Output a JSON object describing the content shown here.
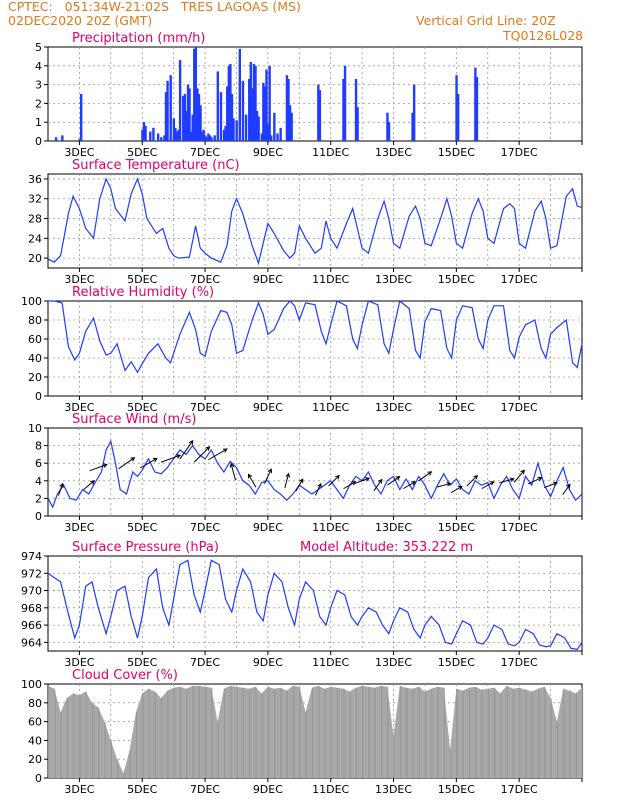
{
  "header": {
    "line1": "CPTEC:   051:34W-21:02S   TRES LAGOAS (MS)",
    "line2": "02DEC2020 20Z (GMT)",
    "grid_note": "Vertical Grid Line: 20Z",
    "code": "TQ0126L028"
  },
  "colors": {
    "header": "#e07a1a",
    "title": "#e0006e",
    "series": "#1f3cff",
    "cloud": "#a8a8a8",
    "grid": "#9a9a9a"
  },
  "x_axis": {
    "start_label": "02DEC2020 20Z",
    "ticks": [
      "3DEC",
      "5DEC",
      "7DEC",
      "9DEC",
      "11DEC",
      "13DEC",
      "15DEC",
      "17DEC"
    ]
  },
  "chart_data": [
    {
      "id": "precip",
      "type": "bar",
      "title": "Precipitation (mm/h)",
      "ylim": [
        0,
        5
      ],
      "yticks": [
        0,
        1,
        2,
        3,
        4,
        5
      ],
      "x_unit": "days since 02DEC2020 20Z",
      "x": [
        0.25,
        0.45,
        1.0,
        1.05,
        3.0,
        3.05,
        3.1,
        3.25,
        3.35,
        3.5,
        3.6,
        3.7,
        3.75,
        3.8,
        3.9,
        4.0,
        4.05,
        4.1,
        4.15,
        4.2,
        4.3,
        4.35,
        4.4,
        4.45,
        4.5,
        4.55,
        4.6,
        4.65,
        4.7,
        4.75,
        4.8,
        4.85,
        4.9,
        4.95,
        5.0,
        5.05,
        5.1,
        5.15,
        5.2,
        5.3,
        5.4,
        5.5,
        5.6,
        5.65,
        5.7,
        5.75,
        5.8,
        5.85,
        5.9,
        6.0,
        6.1,
        6.2,
        6.3,
        6.4,
        6.45,
        6.5,
        6.55,
        6.6,
        6.65,
        6.7,
        6.8,
        6.85,
        6.9,
        6.95,
        7.0,
        7.05,
        7.1,
        7.2,
        7.3,
        7.4,
        7.6,
        7.65,
        7.7,
        7.75,
        8.6,
        8.65,
        9.4,
        9.45,
        9.8,
        9.85,
        10.8,
        10.85,
        11.6,
        11.65,
        13.0,
        13.05,
        13.6,
        13.65
      ],
      "values": [
        0.2,
        0.3,
        0.1,
        2.5,
        0.6,
        1.0,
        0.8,
        0.5,
        0.7,
        0.4,
        0.2,
        0.3,
        2.6,
        3.2,
        3.5,
        1.2,
        0.7,
        0.5,
        0.6,
        4.3,
        2.4,
        2.5,
        1.6,
        3.0,
        2.8,
        0.5,
        1.4,
        4.9,
        5.0,
        2.8,
        2.5,
        1.9,
        0.5,
        0.6,
        0.3,
        0.2,
        0.4,
        0.3,
        0.2,
        0.3,
        3.7,
        2.6,
        0.6,
        0.8,
        2.9,
        4.0,
        4.1,
        2.5,
        1.2,
        1.1,
        4.9,
        3.2,
        1.4,
        3.3,
        4.2,
        2.8,
        4.1,
        4.0,
        1.6,
        1.3,
        0.4,
        3.1,
        2.9,
        3.8,
        0.9,
        4.0,
        0.3,
        1.5,
        0.4,
        0.7,
        3.5,
        3.3,
        1.9,
        1.5,
        3.0,
        2.7,
        3.3,
        4.0,
        3.3,
        1.8,
        1.5,
        1.0,
        1.5,
        3.0,
        3.5,
        2.5,
        3.9,
        3.4
      ]
    },
    {
      "id": "temp",
      "type": "line",
      "title": "Surface Temperature (nC)",
      "ylim": [
        18,
        37
      ],
      "yticks": [
        20,
        24,
        28,
        32,
        36
      ],
      "x_unit": "days since 02DEC2020 20Z",
      "x": [
        0.0,
        0.2,
        0.4,
        0.65,
        0.8,
        1.0,
        1.2,
        1.45,
        1.65,
        1.85,
        2.0,
        2.15,
        2.45,
        2.65,
        2.85,
        3.0,
        3.15,
        3.45,
        3.65,
        3.85,
        4.0,
        4.15,
        4.5,
        4.7,
        4.85,
        5.0,
        5.2,
        5.5,
        5.7,
        5.85,
        6.0,
        6.2,
        6.5,
        6.7,
        6.85,
        7.0,
        7.2,
        7.5,
        7.7,
        7.85,
        8.0,
        8.2,
        8.5,
        8.7,
        8.85,
        9.0,
        9.2,
        9.5,
        9.7,
        9.85,
        10.0,
        10.2,
        10.5,
        10.7,
        10.85,
        11.0,
        11.2,
        11.5,
        11.7,
        11.85,
        12.0,
        12.2,
        12.5,
        12.7,
        12.85,
        13.0,
        13.2,
        13.5,
        13.7,
        13.85,
        14.0,
        14.2,
        14.5,
        14.7,
        14.85,
        15.0,
        15.2,
        15.5,
        15.7,
        15.85,
        16.0,
        16.2,
        16.5,
        16.7,
        16.85,
        17.0
      ],
      "values": [
        19.8,
        19.2,
        20.5,
        29.0,
        32.5,
        30.0,
        26.0,
        24.0,
        32.0,
        36.0,
        34.0,
        30.0,
        27.5,
        33.0,
        36.0,
        33.0,
        28.0,
        25.0,
        26.0,
        22.0,
        20.5,
        20.0,
        20.2,
        26.5,
        22.0,
        21.0,
        20.0,
        19.2,
        22.5,
        29.5,
        32.0,
        29.0,
        22.5,
        19.0,
        23.0,
        27.0,
        25.0,
        21.5,
        20.0,
        21.0,
        26.5,
        24.0,
        21.0,
        22.0,
        27.5,
        24.0,
        22.0,
        27.0,
        30.0,
        26.0,
        22.0,
        21.0,
        28.0,
        31.5,
        28.0,
        23.0,
        22.0,
        28.5,
        30.5,
        28.0,
        23.0,
        22.5,
        28.0,
        32.0,
        28.5,
        23.0,
        22.0,
        29.0,
        32.0,
        29.5,
        24.0,
        23.0,
        30.0,
        31.0,
        30.0,
        23.0,
        22.0,
        29.5,
        31.5,
        28.0,
        22.0,
        22.5,
        32.5,
        34.0,
        30.5,
        30.2
      ]
    },
    {
      "id": "rh",
      "type": "line",
      "title": "Relative Humidity (%)",
      "ylim": [
        0,
        100
      ],
      "yticks": [
        0,
        20,
        40,
        60,
        80,
        100
      ],
      "x_unit": "days since 02DEC2020 20Z",
      "x": [
        0.0,
        0.2,
        0.45,
        0.65,
        0.85,
        1.0,
        1.2,
        1.45,
        1.65,
        1.85,
        2.0,
        2.2,
        2.45,
        2.65,
        2.85,
        3.0,
        3.2,
        3.5,
        3.75,
        3.9,
        4.0,
        4.2,
        4.5,
        4.7,
        4.85,
        5.0,
        5.2,
        5.5,
        5.7,
        5.85,
        6.0,
        6.2,
        6.5,
        6.7,
        6.85,
        7.0,
        7.2,
        7.5,
        7.7,
        7.85,
        8.0,
        8.2,
        8.5,
        8.7,
        8.85,
        9.0,
        9.2,
        9.5,
        9.7,
        9.85,
        10.0,
        10.2,
        10.5,
        10.7,
        10.85,
        11.0,
        11.2,
        11.5,
        11.7,
        11.85,
        12.0,
        12.2,
        12.5,
        12.7,
        12.85,
        13.0,
        13.2,
        13.5,
        13.7,
        13.85,
        14.0,
        14.2,
        14.5,
        14.7,
        14.85,
        15.0,
        15.2,
        15.5,
        15.7,
        15.85,
        16.0,
        16.2,
        16.5,
        16.7,
        16.85,
        17.0
      ],
      "values": [
        100,
        100,
        98,
        52,
        38,
        45,
        68,
        82,
        58,
        43,
        45,
        55,
        27,
        36,
        25,
        34,
        45,
        55,
        40,
        35,
        45,
        65,
        88,
        70,
        45,
        42,
        68,
        90,
        88,
        75,
        45,
        48,
        80,
        98,
        86,
        65,
        70,
        92,
        100,
        95,
        80,
        98,
        96,
        68,
        55,
        75,
        100,
        95,
        60,
        50,
        75,
        100,
        96,
        55,
        45,
        70,
        100,
        92,
        48,
        40,
        78,
        92,
        90,
        50,
        40,
        80,
        95,
        93,
        60,
        50,
        80,
        95,
        95,
        48,
        40,
        62,
        75,
        80,
        50,
        40,
        65,
        72,
        80,
        35,
        30,
        55
      ]
    },
    {
      "id": "wind",
      "type": "line",
      "title": "Surface Wind (m/s)",
      "ylim": [
        0,
        10
      ],
      "yticks": [
        0,
        2,
        4,
        6,
        8,
        10
      ],
      "x_unit": "days since 02DEC2020 20Z",
      "x": [
        0.0,
        0.15,
        0.3,
        0.5,
        0.7,
        0.9,
        1.1,
        1.3,
        1.5,
        1.7,
        1.85,
        2.0,
        2.15,
        2.3,
        2.5,
        2.7,
        2.85,
        3.0,
        3.2,
        3.4,
        3.6,
        3.8,
        4.0,
        4.2,
        4.4,
        4.6,
        4.8,
        5.0,
        5.2,
        5.4,
        5.6,
        5.8,
        6.0,
        6.2,
        6.4,
        6.6,
        6.8,
        7.0,
        7.2,
        7.4,
        7.6,
        7.8,
        8.0,
        8.2,
        8.4,
        8.6,
        8.8,
        9.0,
        9.2,
        9.4,
        9.6,
        9.8,
        10.0,
        10.2,
        10.4,
        10.6,
        10.8,
        11.0,
        11.2,
        11.4,
        11.6,
        11.8,
        12.0,
        12.2,
        12.4,
        12.6,
        12.8,
        13.0,
        13.2,
        13.4,
        13.6,
        13.8,
        14.0,
        14.2,
        14.4,
        14.6,
        14.8,
        15.0,
        15.2,
        15.4,
        15.6,
        15.8,
        16.0,
        16.2,
        16.4,
        16.6,
        16.8,
        17.0
      ],
      "values": [
        2.0,
        1.0,
        2.5,
        3.5,
        2.0,
        1.8,
        3.0,
        2.5,
        3.8,
        5.0,
        7.5,
        8.5,
        6.0,
        3.0,
        2.5,
        5.0,
        4.5,
        5.2,
        6.5,
        5.0,
        4.8,
        5.5,
        6.5,
        7.5,
        7.0,
        8.0,
        7.0,
        6.5,
        7.5,
        6.0,
        5.0,
        6.2,
        5.5,
        4.0,
        3.5,
        2.5,
        3.8,
        4.0,
        3.0,
        2.5,
        1.8,
        2.5,
        3.5,
        3.0,
        2.5,
        3.0,
        3.5,
        4.0,
        3.0,
        2.0,
        3.5,
        4.5,
        4.0,
        5.0,
        3.5,
        2.5,
        4.0,
        4.5,
        3.0,
        4.2,
        3.0,
        4.5,
        3.5,
        2.0,
        3.5,
        4.8,
        3.5,
        4.2,
        3.0,
        2.5,
        4.0,
        3.5,
        3.8,
        2.0,
        3.5,
        4.5,
        3.0,
        2.0,
        4.5,
        3.5,
        6.0,
        3.5,
        2.2,
        4.0,
        5.5,
        3.0,
        1.8,
        2.5
      ],
      "arrows": {
        "x": [
          0.4,
          1.3,
          1.6,
          2.5,
          3.2,
          3.9,
          4.4,
          4.9,
          5.4,
          5.9,
          6.5,
          7.0,
          7.6,
          8.0,
          8.6,
          9.1,
          9.6,
          10.0,
          10.5,
          11.0,
          11.5,
          12.0,
          12.6,
          13.0,
          13.5,
          14.0,
          14.6,
          15.0,
          15.5,
          16.0,
          16.5
        ],
        "dir": [
          200,
          230,
          250,
          235,
          240,
          250,
          215,
          225,
          240,
          165,
          150,
          205,
          195,
          210,
          205,
          225,
          240,
          250,
          215,
          235,
          240,
          235,
          255,
          240,
          225,
          240,
          255,
          220,
          245,
          250,
          215
        ],
        "speed": [
          3,
          3.5,
          5.5,
          6,
          6,
          6.5,
          7.5,
          7,
          7,
          5,
          4,
          4.5,
          4,
          3.5,
          3,
          4,
          3.5,
          4,
          3.5,
          4,
          3.5,
          4.5,
          3.5,
          3,
          4,
          3.5,
          4,
          4.5,
          4,
          3.5,
          3
        ]
      }
    },
    {
      "id": "pres",
      "type": "line",
      "title": "Surface Pressure (hPa)",
      "extra": "Model Altitude: 353.222 m",
      "ylim": [
        963,
        974
      ],
      "yticks": [
        964,
        966,
        968,
        970,
        972,
        974
      ],
      "x_unit": "days since 02DEC2020 20Z",
      "x": [
        0.0,
        0.2,
        0.4,
        0.6,
        0.85,
        1.0,
        1.2,
        1.4,
        1.6,
        1.85,
        2.0,
        2.2,
        2.45,
        2.65,
        2.85,
        3.0,
        3.2,
        3.45,
        3.65,
        3.85,
        4.0,
        4.2,
        4.45,
        4.65,
        4.85,
        5.0,
        5.2,
        5.45,
        5.65,
        5.85,
        6.0,
        6.2,
        6.45,
        6.65,
        6.85,
        7.0,
        7.2,
        7.45,
        7.65,
        7.85,
        8.0,
        8.2,
        8.45,
        8.65,
        8.85,
        9.0,
        9.2,
        9.45,
        9.65,
        9.85,
        10.0,
        10.2,
        10.45,
        10.65,
        10.85,
        11.0,
        11.2,
        11.45,
        11.65,
        11.85,
        12.0,
        12.2,
        12.45,
        12.65,
        12.85,
        13.0,
        13.2,
        13.45,
        13.65,
        13.85,
        14.0,
        14.2,
        14.45,
        14.65,
        14.85,
        15.0,
        15.2,
        15.45,
        15.65,
        15.85,
        16.0,
        16.2,
        16.45,
        16.65,
        16.85,
        17.0
      ],
      "values": [
        972.0,
        971.5,
        971.0,
        968.0,
        964.5,
        966.0,
        970.5,
        971.0,
        968.0,
        965.0,
        967.0,
        970.0,
        970.5,
        967.0,
        964.5,
        967.0,
        971.5,
        972.5,
        968.0,
        966.0,
        969.0,
        973.0,
        973.5,
        969.5,
        967.5,
        970.0,
        973.5,
        973.0,
        969.0,
        967.5,
        970.0,
        972.5,
        971.0,
        967.5,
        966.5,
        969.5,
        972.0,
        971.0,
        968.0,
        966.0,
        969.0,
        971.0,
        970.0,
        967.0,
        966.0,
        968.0,
        970.0,
        969.5,
        967.0,
        966.0,
        967.0,
        968.0,
        967.5,
        966.0,
        965.0,
        966.5,
        968.0,
        967.5,
        965.5,
        964.5,
        966.0,
        967.0,
        966.0,
        964.0,
        963.8,
        965.0,
        966.5,
        966.0,
        964.0,
        963.8,
        964.5,
        966.0,
        965.5,
        963.8,
        963.6,
        964.0,
        965.5,
        965.0,
        963.7,
        963.5,
        963.6,
        965.0,
        964.5,
        963.3,
        963.2,
        964.0
      ]
    },
    {
      "id": "cloud",
      "type": "area",
      "title": "Cloud Cover (%)",
      "ylim": [
        0,
        100
      ],
      "yticks": [
        0,
        20,
        40,
        60,
        80,
        100
      ],
      "x_unit": "days since 02DEC2020 20Z",
      "x": [
        0.0,
        0.2,
        0.4,
        0.6,
        0.8,
        1.0,
        1.2,
        1.4,
        1.6,
        1.8,
        2.0,
        2.2,
        2.4,
        2.6,
        2.8,
        3.0,
        3.2,
        3.4,
        3.6,
        3.8,
        4.0,
        4.2,
        4.4,
        4.6,
        4.8,
        5.0,
        5.2,
        5.4,
        5.6,
        5.8,
        6.0,
        6.2,
        6.4,
        6.6,
        6.8,
        7.0,
        7.2,
        7.4,
        7.6,
        7.8,
        8.0,
        8.2,
        8.4,
        8.6,
        8.8,
        9.0,
        9.2,
        9.4,
        9.6,
        9.8,
        10.0,
        10.2,
        10.4,
        10.6,
        10.8,
        11.0,
        11.2,
        11.4,
        11.6,
        11.8,
        12.0,
        12.2,
        12.4,
        12.6,
        12.8,
        13.0,
        13.2,
        13.4,
        13.6,
        13.8,
        14.0,
        14.2,
        14.4,
        14.6,
        14.8,
        15.0,
        15.2,
        15.4,
        15.6,
        15.8,
        16.0,
        16.2,
        16.4,
        16.6,
        16.8,
        17.0
      ],
      "values": [
        98,
        95,
        70,
        85,
        90,
        88,
        92,
        80,
        75,
        60,
        40,
        20,
        5,
        30,
        70,
        90,
        95,
        92,
        85,
        93,
        96,
        97,
        95,
        98,
        98,
        97,
        96,
        60,
        95,
        98,
        97,
        96,
        95,
        97,
        90,
        97,
        95,
        96,
        93,
        98,
        97,
        70,
        96,
        98,
        95,
        97,
        96,
        95,
        92,
        96,
        98,
        97,
        96,
        98,
        97,
        45,
        98,
        96,
        95,
        97,
        92,
        95,
        97,
        96,
        30,
        95,
        93,
        96,
        97,
        94,
        95,
        96,
        90,
        98,
        95,
        96,
        94,
        92,
        95,
        97,
        85,
        60,
        95,
        93,
        90,
        96
      ]
    }
  ]
}
